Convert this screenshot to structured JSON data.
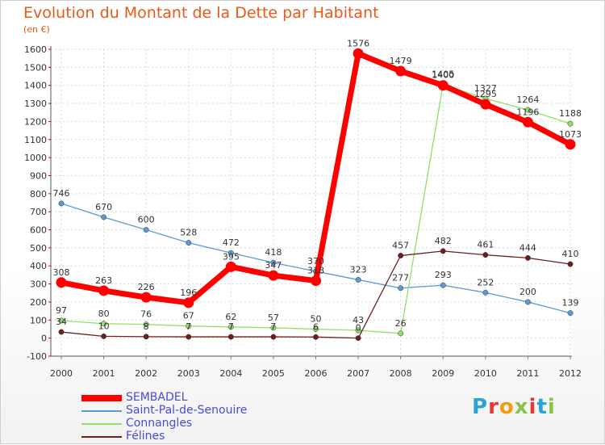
{
  "chart": {
    "title": "Evolution du Montant de la Dette par Habitant",
    "unit": "(en €)"
  },
  "brand": {
    "letters": [
      "P",
      "r",
      "o",
      "x",
      "i",
      "t",
      "i"
    ],
    "colors": [
      "#2aa3d8",
      "#e53935",
      "#f39c12",
      "#8bc34a",
      "#e53935",
      "#2aa3d8",
      "#8bc34a"
    ]
  },
  "chart_data": {
    "type": "line",
    "title": "Evolution du Montant de la Dette par Habitant",
    "ylabel": "(en €)",
    "x": [
      "2000",
      "2001",
      "2002",
      "2003",
      "2004",
      "2005",
      "2006",
      "2007",
      "2008",
      "2009",
      "2010",
      "2011",
      "2012"
    ],
    "ylim": [
      -100,
      1600
    ],
    "yticks": [
      -100,
      0,
      100,
      200,
      300,
      400,
      500,
      600,
      700,
      800,
      900,
      1000,
      1100,
      1200,
      1300,
      1400,
      1500,
      1600
    ],
    "grid": true,
    "legend_position": "bottom-left",
    "series": [
      {
        "name": "SEMBADEL",
        "color": "#ff0000",
        "width": 7,
        "values": [
          308,
          263,
          226,
          196,
          395,
          347,
          318,
          1576,
          1479,
          1400,
          1295,
          1196,
          1073
        ],
        "labels": [
          "308",
          "263",
          "226",
          "196",
          "395",
          "347",
          "318",
          "1576",
          "1479",
          "1400",
          "1295",
          "1196",
          "1073"
        ]
      },
      {
        "name": "Saint-Pal-de-Senouire",
        "color": "#5b9bd5",
        "width": 1.3,
        "values": [
          746,
          670,
          600,
          528,
          472,
          418,
          370,
          323,
          277,
          293,
          252,
          200,
          139
        ],
        "labels": [
          "746",
          "670",
          "600",
          "528",
          "472",
          "418",
          "370",
          "323",
          "277",
          "293",
          "252",
          "200",
          "139"
        ]
      },
      {
        "name": "Connangles",
        "color": "#8fe06a",
        "width": 1.3,
        "values": [
          97,
          80,
          76,
          67,
          62,
          57,
          50,
          43,
          26,
          1405,
          1327,
          1264,
          1188
        ],
        "labels": [
          "97",
          "80",
          "76",
          "67",
          "62",
          "57",
          "50",
          "43",
          "26",
          "1405",
          "1327",
          "1264",
          "1188"
        ]
      },
      {
        "name": "Félines",
        "color": "#6b1f1f",
        "width": 1.3,
        "values": [
          34,
          10,
          8,
          7,
          7,
          7,
          6,
          0,
          457,
          482,
          461,
          444,
          410
        ],
        "labels": [
          "34",
          "10",
          "8",
          "7",
          "7",
          "7",
          "6",
          "0",
          "457",
          "482",
          "461",
          "444",
          "410"
        ]
      }
    ]
  }
}
